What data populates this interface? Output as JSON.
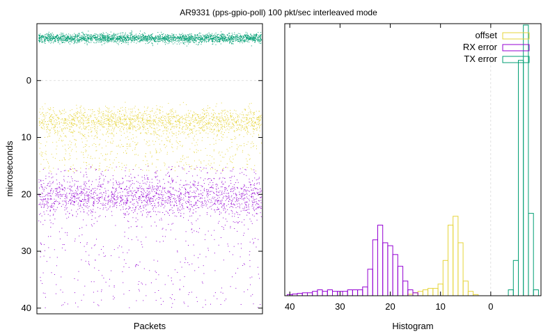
{
  "title": "AR9331 (pps-gpio-poll) 100 pkt/sec interleaved mode",
  "colors": {
    "offset": "#e6d43a",
    "rx": "#9400d3",
    "tx": "#009e73",
    "zero_line": "#cccccc",
    "frame": "#000000"
  },
  "chart_data": [
    {
      "type": "scatter",
      "xlabel": "Packets",
      "ylabel": "microseconds",
      "ylim": [
        41,
        -10
      ],
      "yticks": [
        "0",
        "10",
        "20",
        "30",
        "40"
      ],
      "ytick_values": [
        0,
        10,
        20,
        30,
        40
      ],
      "grid": false,
      "zero_line": "dashed",
      "series": [
        {
          "key": "tx",
          "center": -7.5,
          "spread": 0.4,
          "tail": 0.0,
          "count": 2500
        },
        {
          "key": "offset",
          "center": 7,
          "spread": 1.1,
          "tail": 0.25,
          "count": 2200
        },
        {
          "key": "rx",
          "center": 20.5,
          "spread": 1.6,
          "tail": 0.25,
          "count": 2200
        }
      ]
    },
    {
      "type": "bar",
      "style": "histogram-steps",
      "xlabel": "Histogram",
      "xlim": [
        41,
        -10
      ],
      "xticks": [
        "40",
        "30",
        "20",
        "10",
        "0"
      ],
      "xtick_values": [
        40,
        30,
        20,
        10,
        0
      ],
      "legend_position": "top-right",
      "series": [
        {
          "key": "offset",
          "name": "offset",
          "bins": [
            [
              -3,
              0
            ],
            [
              -2,
              0
            ],
            [
              -1,
              0
            ],
            [
              0,
              0
            ],
            [
              1,
              0
            ],
            [
              2,
              0
            ],
            [
              3,
              0.4
            ],
            [
              4,
              1.5
            ],
            [
              5,
              5
            ],
            [
              6,
              18
            ],
            [
              7,
              27
            ],
            [
              8,
              24
            ],
            [
              9,
              12
            ],
            [
              10,
              4
            ],
            [
              11,
              2.5
            ],
            [
              12,
              2.5
            ],
            [
              13,
              2
            ],
            [
              14,
              1.5
            ],
            [
              15,
              1
            ],
            [
              16,
              0.5
            ]
          ]
        },
        {
          "key": "rx",
          "name": "RX error",
          "bins": [
            [
              15,
              1
            ],
            [
              16,
              2
            ],
            [
              17,
              5
            ],
            [
              18,
              10
            ],
            [
              19,
              14
            ],
            [
              20,
              17
            ],
            [
              21,
              18
            ],
            [
              22,
              24
            ],
            [
              23,
              19
            ],
            [
              24,
              9
            ],
            [
              25,
              3
            ],
            [
              26,
              2
            ],
            [
              27,
              2
            ],
            [
              28,
              2
            ],
            [
              29,
              1.5
            ],
            [
              30,
              1.5
            ],
            [
              31,
              1.5
            ],
            [
              32,
              2
            ],
            [
              33,
              1.5
            ],
            [
              34,
              2
            ],
            [
              35,
              1.5
            ],
            [
              36,
              1
            ],
            [
              37,
              1
            ],
            [
              38,
              0.8
            ],
            [
              39,
              0.6
            ],
            [
              40,
              0.4
            ]
          ]
        },
        {
          "key": "tx",
          "name": "TX error",
          "bins": [
            [
              -9,
              2
            ],
            [
              -8,
              28
            ],
            [
              -7,
              92
            ],
            [
              -6,
              80
            ],
            [
              -5,
              12
            ],
            [
              -4,
              2
            ]
          ]
        }
      ]
    }
  ]
}
